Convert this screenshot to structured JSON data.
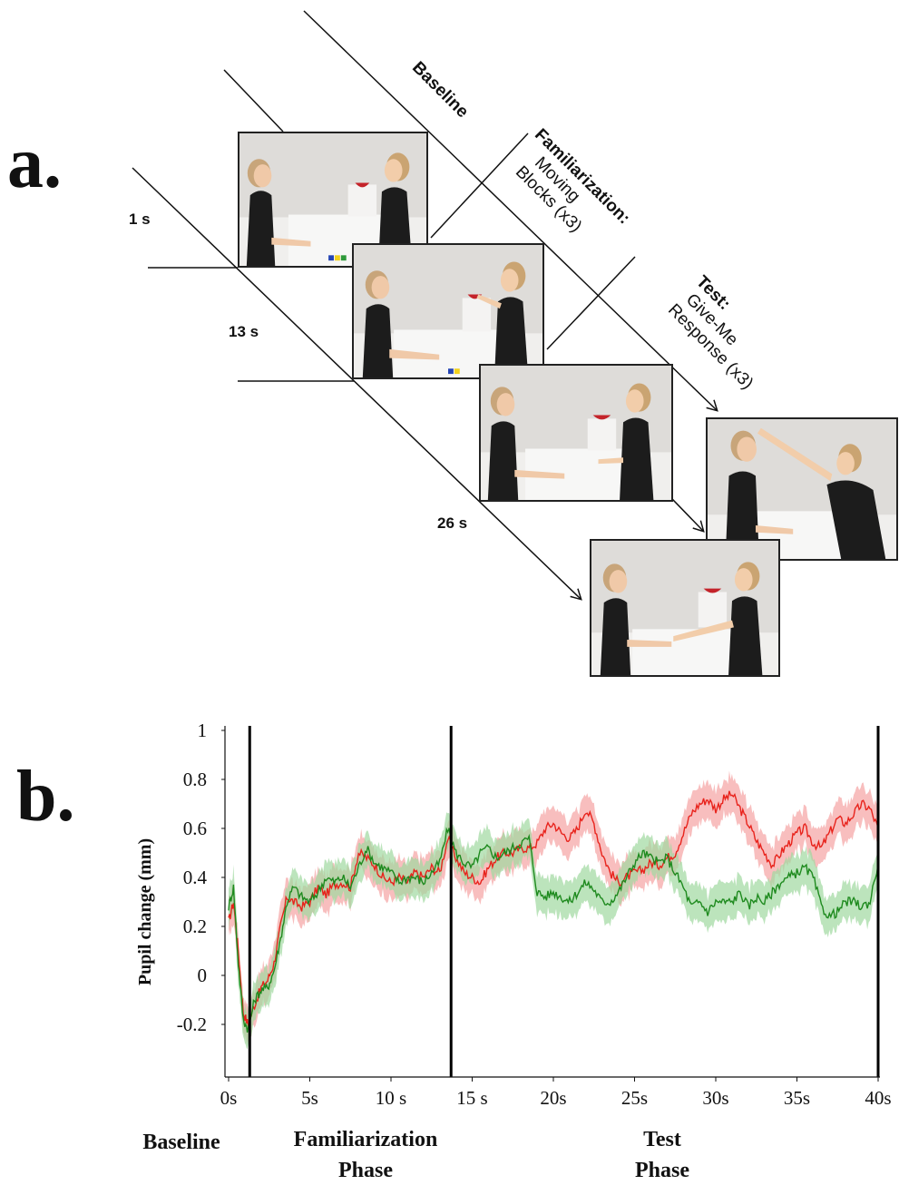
{
  "panel_a": {
    "label": "a.",
    "phases": {
      "baseline": "Baseline",
      "familiarization_title": "Familiarization:",
      "familiarization_line1": "Moving",
      "familiarization_line2": "Blocks (x3)",
      "test_title": "Test:",
      "test_line1": "Give-Me",
      "test_line2": "Response (x3)"
    },
    "times": [
      "1 s",
      "13 s",
      "26 s"
    ],
    "frames": [
      {
        "name": "baseline-frame",
        "description_icon": "two-women-seated-at-table-icon"
      },
      {
        "name": "familiarization-frame",
        "description_icon": "woman-moving-blocks-icon"
      },
      {
        "name": "test-frame",
        "description_icon": "women-facing-hand-out-icon"
      },
      {
        "name": "test-response-head-frame",
        "description_icon": "woman-touching-head-icon"
      },
      {
        "name": "test-response-hand-frame",
        "description_icon": "woman-touching-hand-icon"
      }
    ]
  },
  "panel_b": {
    "label": "b.",
    "phase_labels": {
      "baseline": "Baseline",
      "familiarization_line1": "Familiarization",
      "familiarization_line2": "Phase",
      "test_line1": "Test",
      "test_line2": "Phase"
    }
  },
  "chart_data": {
    "type": "line",
    "title": "",
    "xlabel": "",
    "ylabel": "Pupil change (mm)",
    "xlim": [
      0,
      40
    ],
    "ylim": [
      -0.4,
      1
    ],
    "xticks": [
      0,
      5,
      10,
      15,
      20,
      25,
      30,
      35,
      40
    ],
    "xtick_labels": [
      "0s",
      "5s",
      "10 s",
      "15 s",
      "20s",
      "25s",
      "30s",
      "35s",
      "40s"
    ],
    "yticks": [
      -0.2,
      0,
      0.2,
      0.4,
      0.6,
      0.8,
      1
    ],
    "ytick_labels": [
      "-0.2",
      "0",
      "0.2",
      "0.4",
      "0.6",
      "0.8",
      "1"
    ],
    "grid": false,
    "legend": "none",
    "phase_boundaries": [
      1.3,
      13.7,
      40
    ],
    "series": [
      {
        "color": "#e8231c",
        "band_color": "#f5a3a3",
        "x": [
          0,
          0.3,
          0.6,
          0.9,
          1.2,
          1.6,
          2.0,
          2.4,
          2.8,
          3.2,
          3.6,
          4.0,
          4.5,
          5.0,
          5.5,
          6.0,
          6.5,
          7.0,
          7.5,
          8.0,
          8.5,
          9.0,
          9.5,
          10.0,
          10.5,
          11.0,
          11.5,
          12.0,
          12.5,
          13.0,
          13.5,
          14.0,
          14.5,
          15.0,
          15.5,
          16.0,
          16.5,
          17.0,
          17.5,
          18.0,
          18.5,
          19.0,
          19.5,
          20.0,
          20.5,
          21.0,
          21.5,
          22.0,
          22.5,
          23.0,
          23.5,
          24.0,
          24.5,
          25.0,
          25.5,
          26.0,
          26.5,
          27.0,
          27.5,
          28.0,
          28.5,
          29.0,
          29.5,
          30.0,
          30.5,
          31.0,
          31.5,
          32.0,
          32.5,
          33.0,
          33.5,
          34.0,
          34.5,
          35.0,
          35.5,
          36.0,
          36.5,
          37.0,
          37.5,
          38.0,
          38.5,
          39.0,
          39.5,
          40.0
        ],
        "values": [
          0.22,
          0.3,
          0.1,
          -0.15,
          -0.2,
          -0.12,
          -0.05,
          -0.02,
          0.05,
          0.2,
          0.32,
          0.3,
          0.28,
          0.3,
          0.36,
          0.33,
          0.37,
          0.38,
          0.36,
          0.5,
          0.48,
          0.45,
          0.4,
          0.38,
          0.4,
          0.38,
          0.42,
          0.4,
          0.44,
          0.42,
          0.56,
          0.48,
          0.42,
          0.4,
          0.38,
          0.44,
          0.48,
          0.5,
          0.5,
          0.52,
          0.52,
          0.54,
          0.6,
          0.62,
          0.58,
          0.56,
          0.6,
          0.68,
          0.62,
          0.5,
          0.42,
          0.38,
          0.4,
          0.42,
          0.43,
          0.46,
          0.45,
          0.48,
          0.5,
          0.58,
          0.66,
          0.7,
          0.72,
          0.68,
          0.72,
          0.74,
          0.68,
          0.62,
          0.55,
          0.5,
          0.45,
          0.5,
          0.54,
          0.58,
          0.6,
          0.54,
          0.52,
          0.58,
          0.64,
          0.62,
          0.66,
          0.7,
          0.68,
          0.6
        ]
      },
      {
        "color": "#1e8a1e",
        "band_color": "#9fd89f",
        "x": [
          0,
          0.3,
          0.6,
          0.9,
          1.2,
          1.6,
          2.0,
          2.4,
          2.8,
          3.2,
          3.6,
          4.0,
          4.5,
          5.0,
          5.5,
          6.0,
          6.5,
          7.0,
          7.5,
          8.0,
          8.5,
          9.0,
          9.5,
          10.0,
          10.5,
          11.0,
          11.5,
          12.0,
          12.5,
          13.0,
          13.5,
          14.0,
          14.5,
          15.0,
          15.5,
          16.0,
          16.5,
          17.0,
          17.5,
          18.0,
          18.5,
          19.0,
          19.5,
          20.0,
          20.5,
          21.0,
          21.5,
          22.0,
          22.5,
          23.0,
          23.5,
          24.0,
          24.5,
          25.0,
          25.5,
          26.0,
          26.5,
          27.0,
          27.5,
          28.0,
          28.5,
          29.0,
          29.5,
          30.0,
          30.5,
          31.0,
          31.5,
          32.0,
          32.5,
          33.0,
          33.5,
          34.0,
          34.5,
          35.0,
          35.5,
          36.0,
          36.5,
          37.0,
          37.5,
          38.0,
          38.5,
          39.0,
          39.5,
          40.0
        ],
        "values": [
          0.28,
          0.36,
          0.05,
          -0.18,
          -0.22,
          -0.1,
          -0.06,
          -0.05,
          0.02,
          0.15,
          0.3,
          0.36,
          0.32,
          0.3,
          0.34,
          0.4,
          0.38,
          0.4,
          0.36,
          0.44,
          0.52,
          0.46,
          0.44,
          0.42,
          0.38,
          0.4,
          0.4,
          0.38,
          0.42,
          0.46,
          0.6,
          0.5,
          0.46,
          0.44,
          0.5,
          0.52,
          0.48,
          0.5,
          0.52,
          0.54,
          0.56,
          0.34,
          0.32,
          0.34,
          0.32,
          0.3,
          0.34,
          0.38,
          0.35,
          0.3,
          0.3,
          0.34,
          0.4,
          0.46,
          0.5,
          0.48,
          0.46,
          0.48,
          0.42,
          0.36,
          0.28,
          0.3,
          0.26,
          0.3,
          0.3,
          0.3,
          0.34,
          0.28,
          0.32,
          0.3,
          0.34,
          0.38,
          0.4,
          0.42,
          0.44,
          0.4,
          0.28,
          0.24,
          0.26,
          0.3,
          0.3,
          0.28,
          0.3,
          0.46
        ]
      }
    ]
  }
}
